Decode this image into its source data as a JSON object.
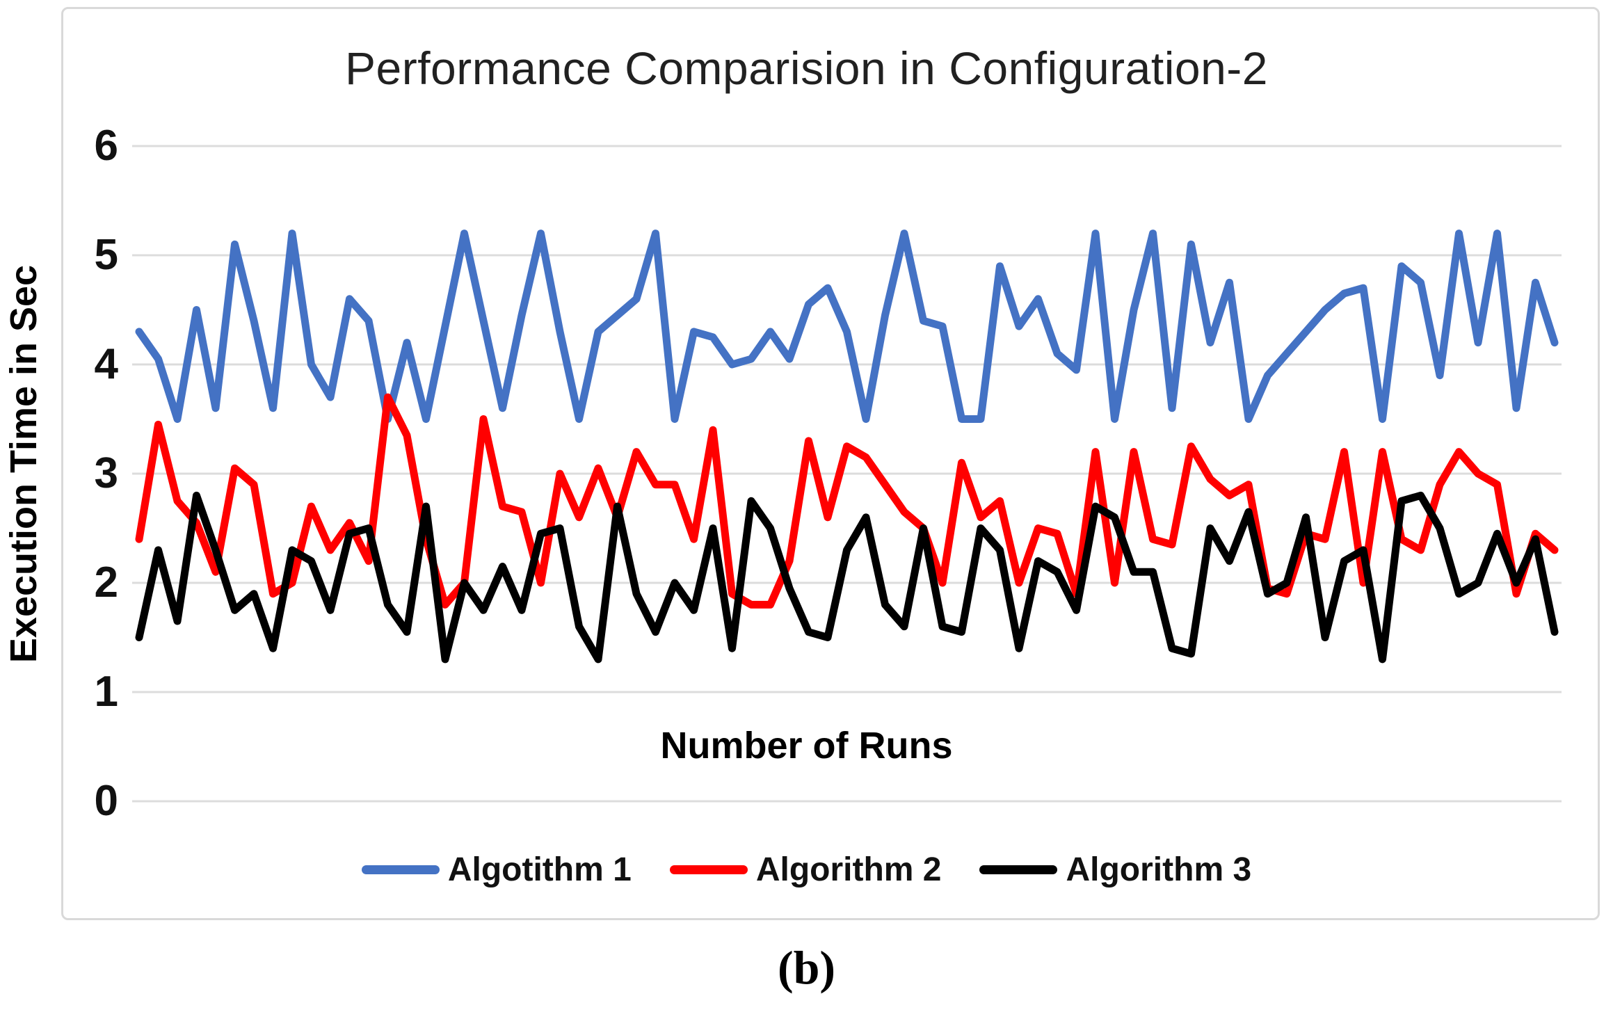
{
  "caption": "(b)",
  "colors": {
    "grid": "#dcdcdc",
    "frame": "#d9d9d9",
    "title_text": "#212121",
    "text": "#000000",
    "algorithm1_blue": "#4472C4",
    "algorithm2_red": "#FF0000",
    "algorithm3_black": "#000000"
  },
  "chart_data": {
    "type": "line",
    "title": "Performance Comparision in Configuration-2",
    "xlabel": "Number of Runs",
    "ylabel": "Execution Time in Sec",
    "ylim": [
      0,
      6
    ],
    "yticks": [
      0,
      1,
      2,
      3,
      4,
      5,
      6
    ],
    "x_description": "runs 1 to 75, no x tick labels shown",
    "grid": "horizontal",
    "legend_position": "bottom",
    "series": [
      {
        "name": "Algotithm 1",
        "color": "#4472C4",
        "values": [
          4.3,
          4.05,
          3.5,
          4.5,
          3.6,
          5.1,
          4.4,
          3.6,
          5.2,
          4.0,
          3.7,
          4.6,
          4.4,
          3.5,
          4.2,
          3.5,
          4.35,
          5.2,
          4.4,
          3.6,
          4.45,
          5.2,
          4.3,
          3.5,
          4.3,
          4.45,
          4.6,
          5.2,
          3.5,
          4.3,
          4.25,
          4.0,
          4.05,
          4.3,
          4.05,
          4.55,
          4.7,
          4.3,
          3.5,
          4.45,
          5.2,
          4.4,
          4.35,
          3.5,
          3.5,
          4.9,
          4.35,
          4.6,
          4.1,
          3.95,
          5.2,
          3.5,
          4.5,
          5.2,
          3.6,
          5.1,
          4.2,
          4.75,
          3.5,
          3.9,
          4.1,
          4.3,
          4.5,
          4.65,
          4.7,
          3.5,
          4.9,
          4.75,
          3.9,
          5.2,
          4.2,
          5.2,
          3.6,
          4.75,
          4.2
        ]
      },
      {
        "name": "Algorithm 2",
        "color": "#FF0000",
        "values": [
          2.4,
          3.45,
          2.75,
          2.55,
          2.1,
          3.05,
          2.9,
          1.9,
          2.0,
          2.7,
          2.3,
          2.55,
          2.2,
          3.7,
          3.35,
          2.4,
          1.8,
          2.0,
          3.5,
          2.7,
          2.65,
          2.0,
          3.0,
          2.6,
          3.05,
          2.6,
          3.2,
          2.9,
          2.9,
          2.4,
          3.4,
          1.9,
          1.8,
          1.8,
          2.2,
          3.3,
          2.6,
          3.25,
          3.15,
          2.9,
          2.65,
          2.5,
          2.0,
          3.1,
          2.6,
          2.75,
          2.0,
          2.5,
          2.45,
          1.9,
          3.2,
          2.0,
          3.2,
          2.4,
          2.35,
          3.25,
          2.95,
          2.8,
          2.9,
          1.95,
          1.9,
          2.45,
          2.4,
          3.2,
          2.0,
          3.2,
          2.4,
          2.3,
          2.9,
          3.2,
          3.0,
          2.9,
          1.9,
          2.45,
          2.3
        ]
      },
      {
        "name": "Algorithm 3",
        "color": "#000000",
        "values": [
          1.5,
          2.3,
          1.65,
          2.8,
          2.3,
          1.75,
          1.9,
          1.4,
          2.3,
          2.2,
          1.75,
          2.45,
          2.5,
          1.8,
          1.55,
          2.7,
          1.3,
          2.0,
          1.75,
          2.15,
          1.75,
          2.45,
          2.5,
          1.6,
          1.3,
          2.7,
          1.9,
          1.55,
          2.0,
          1.75,
          2.5,
          1.4,
          2.75,
          2.5,
          1.95,
          1.55,
          1.5,
          2.3,
          2.6,
          1.8,
          1.6,
          2.5,
          1.6,
          1.55,
          2.5,
          2.3,
          1.4,
          2.2,
          2.1,
          1.75,
          2.7,
          2.6,
          2.1,
          2.1,
          1.4,
          1.35,
          2.5,
          2.2,
          2.65,
          1.9,
          2.0,
          2.6,
          1.5,
          2.2,
          2.3,
          1.3,
          2.75,
          2.8,
          2.5,
          1.9,
          2.0,
          2.45,
          2.0,
          2.4,
          1.55
        ]
      }
    ]
  }
}
